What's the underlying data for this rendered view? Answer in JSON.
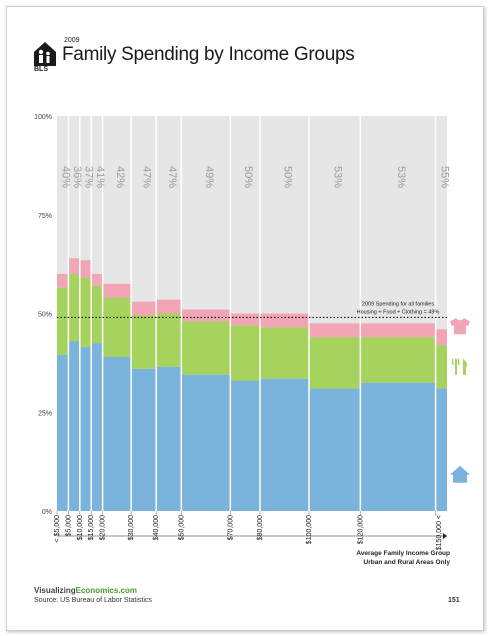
{
  "header": {
    "year": "2009",
    "title": "Family Spending by Income Groups",
    "logo_text": "BLS"
  },
  "chart_data": {
    "type": "bar",
    "subtype": "marimekko-stacked",
    "ylim": [
      0,
      100
    ],
    "y_ticks": [
      "0%",
      "25%",
      "50%",
      "75%",
      "100%"
    ],
    "categories": [
      "< $5,000",
      "$5,000",
      "$10,000",
      "$15,000",
      "$20,000",
      "$30,000",
      "$40,000",
      "$50,000",
      "$70,000",
      "$80,000",
      "$100,000",
      "$120,000",
      "$150,000 <"
    ],
    "x_tick_labels": [
      "< $5,000",
      "$5,000",
      "$10,000",
      "$15,000",
      "$20,000",
      "$30,000",
      "$40,000",
      "$50,000",
      "$70,000",
      "$80,000",
      "$100,000",
      "$120,000",
      "$150,000 <"
    ],
    "top_labels": [
      "40%",
      "36%",
      "37%",
      "41%",
      "42%",
      "47%",
      "47%",
      "49%",
      "50%",
      "50%",
      "53%",
      "53%",
      "55%"
    ],
    "relative_widths": [
      1,
      1,
      1,
      1,
      2.5,
      2.2,
      2.2,
      4.3,
      2.6,
      4.3,
      4.5,
      6.6,
      1
    ],
    "series": [
      {
        "name": "Housing",
        "color": "#7ab4dc",
        "values": [
          39.5,
          43,
          41.5,
          42.5,
          39,
          36,
          36.5,
          34.5,
          33,
          33.5,
          31,
          32.5,
          31
        ]
      },
      {
        "name": "Food",
        "color": "#a6d25e",
        "values": [
          17,
          17,
          17.5,
          14.5,
          15,
          13.5,
          13.5,
          13.5,
          14,
          13,
          13,
          11.5,
          11
        ]
      },
      {
        "name": "Clothing",
        "color": "#f2a5b5",
        "values": [
          3.5,
          4,
          4.5,
          3,
          3.5,
          3.5,
          3.5,
          3,
          3,
          3.5,
          3.5,
          3.5,
          4
        ]
      }
    ],
    "reference_line": {
      "value": 49,
      "label_line1": "2009 Spending for all families",
      "label_line2": "Housing + Food + Clothing = 49%"
    },
    "xlabel_line1": "Average Family Income Group",
    "xlabel_line2": "Urban and Rural Areas Only",
    "colors": {
      "background": "#e6e6e6",
      "separator": "#ffffff",
      "top_label": "#9a9a9a"
    }
  },
  "footer": {
    "brand_a": "Visualizing",
    "brand_b": "Economics.com",
    "source": "Source: US Bureau of Labor Statistics",
    "page_number": "151"
  },
  "icons": [
    "house-icon",
    "shirt-icon",
    "fork-knife-icon"
  ]
}
